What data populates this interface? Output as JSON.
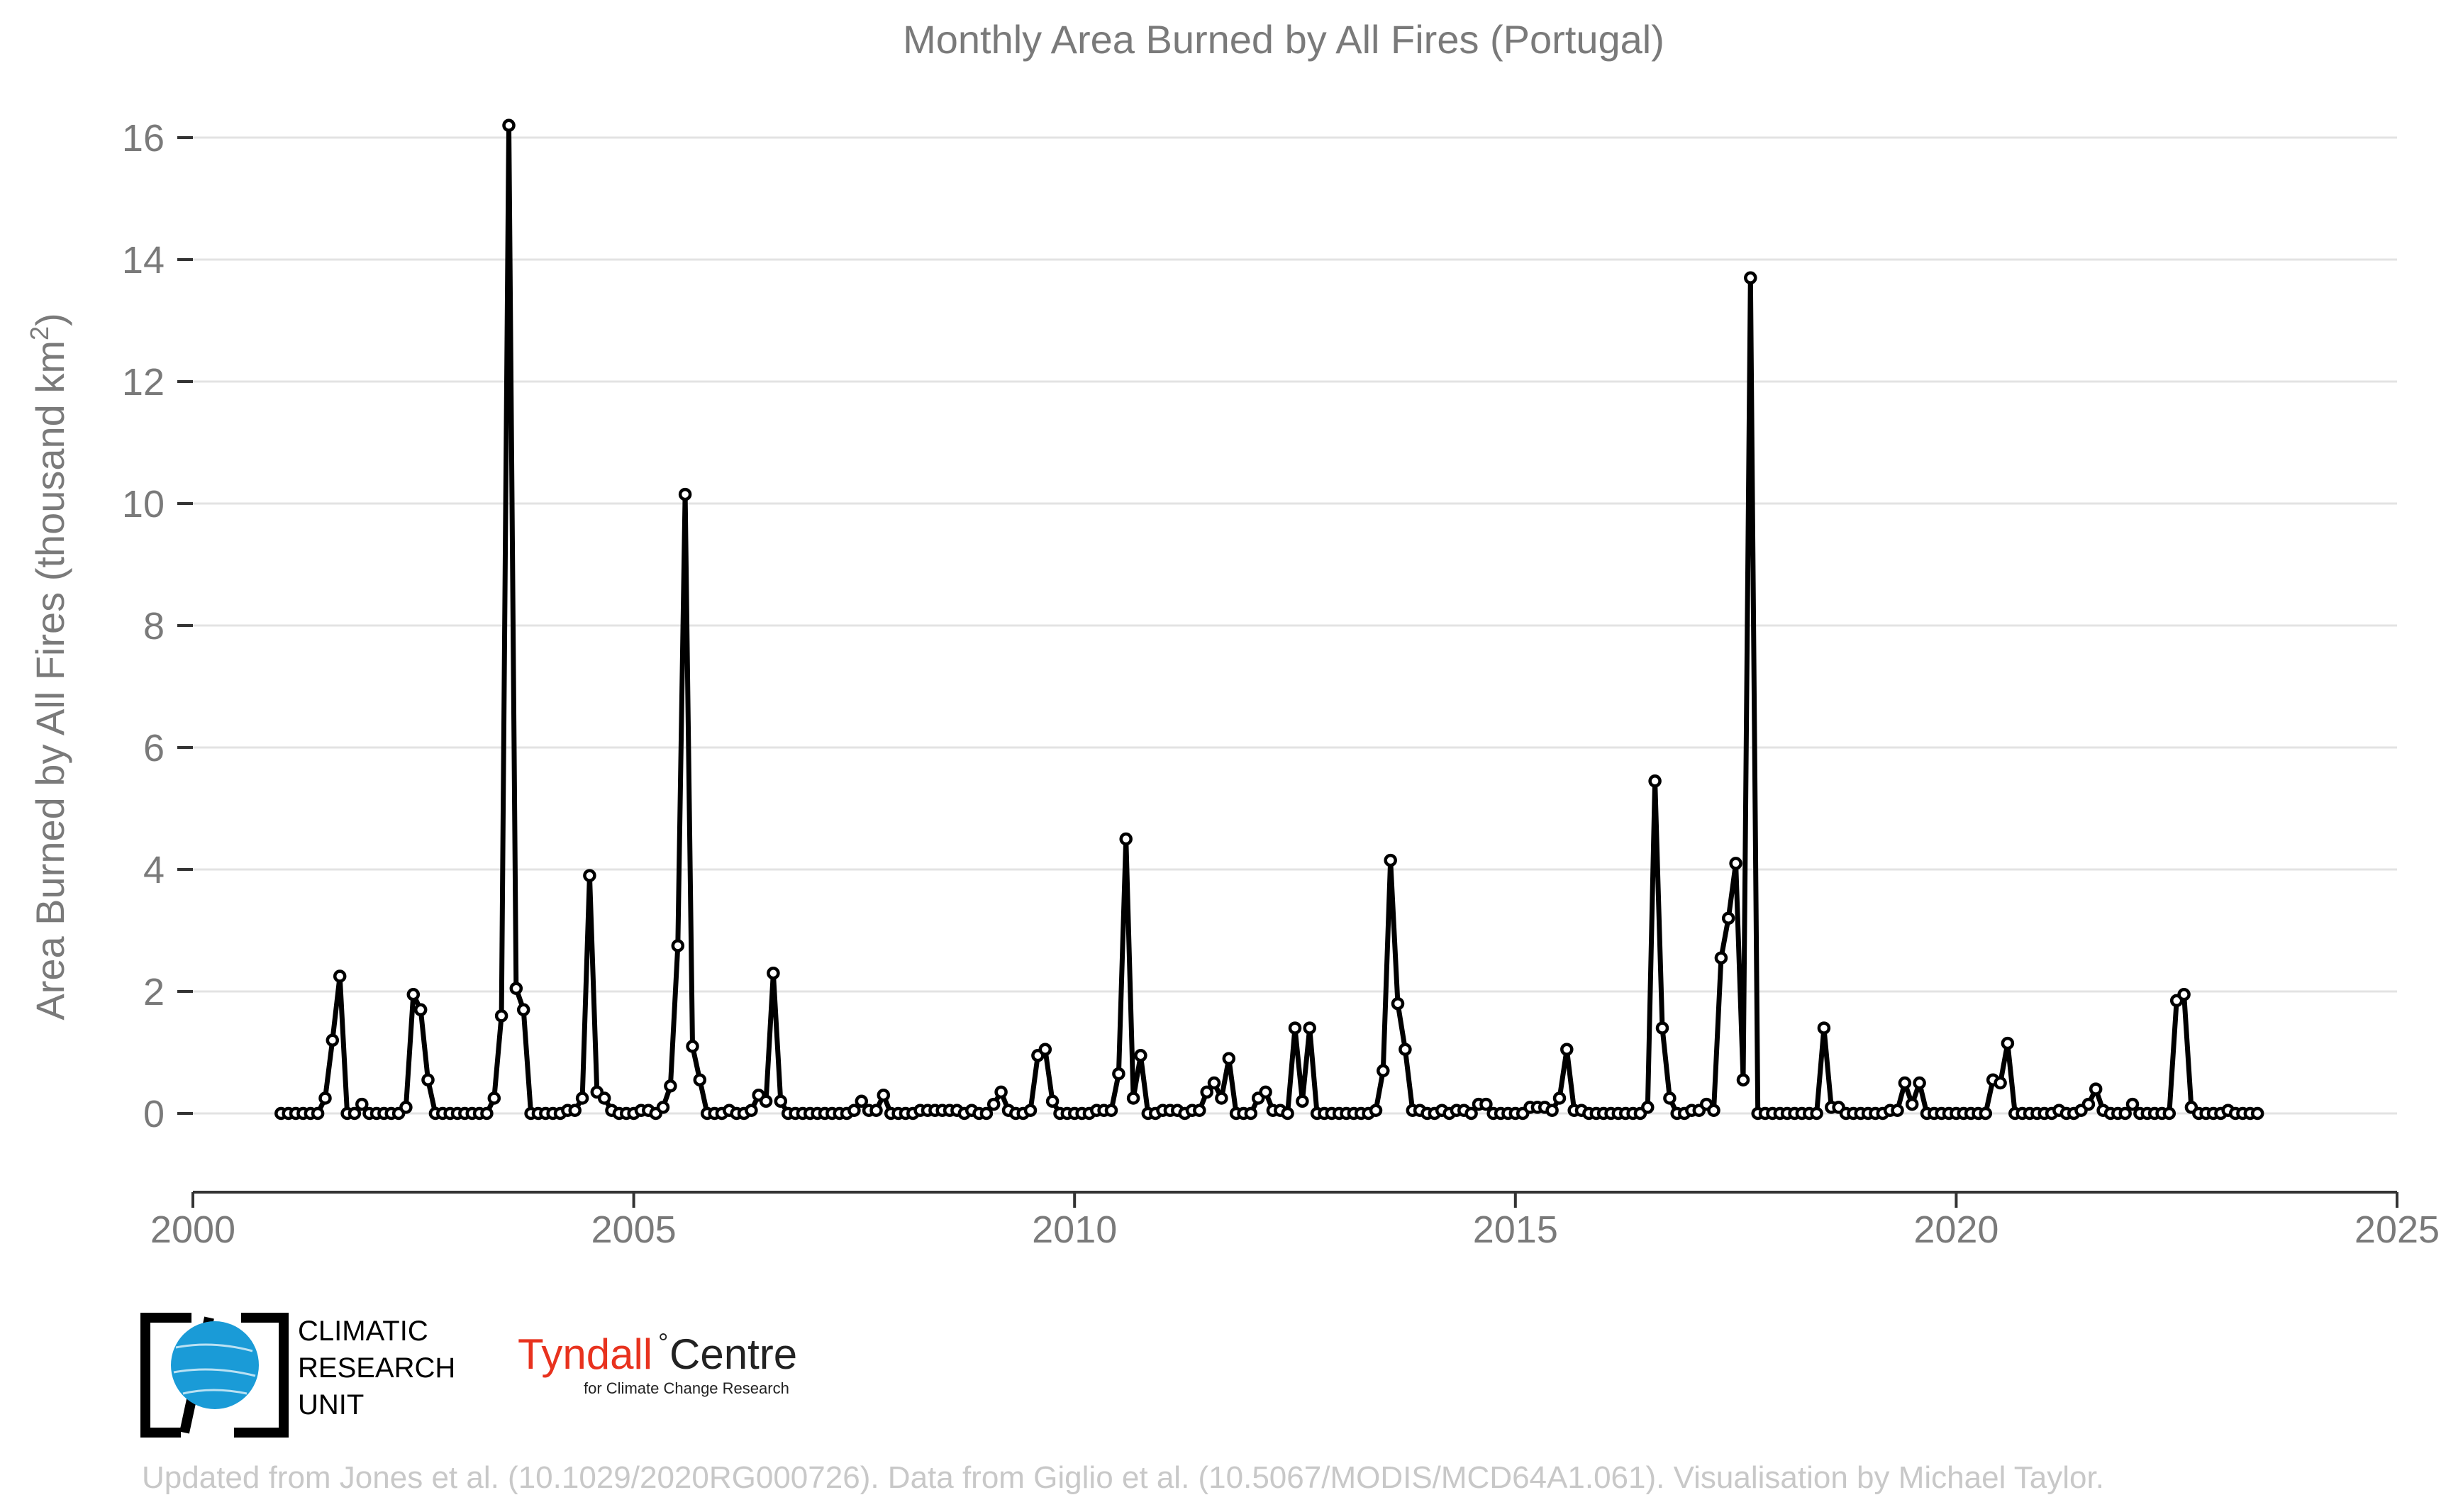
{
  "chart_data": {
    "type": "line",
    "title": "Monthly Area Burned by All Fires (Portugal)",
    "ylabel_main": "Area Burned by All Fires (thousand km",
    "ylabel_sup": "2",
    "ylabel_close": ")",
    "xlabel": "",
    "xlim": [
      2000,
      2025
    ],
    "ylim": [
      -1.3,
      16.5
    ],
    "xticks": [
      2000,
      2005,
      2010,
      2015,
      2020,
      2025
    ],
    "yticks": [
      0,
      2,
      4,
      6,
      8,
      10,
      12,
      14,
      16
    ],
    "grid": "horizontal",
    "x_start": "2001-01",
    "x_step": "1 month",
    "series": [
      {
        "color": "#000000",
        "values": [
          0,
          0,
          0,
          0,
          0,
          0,
          0.25,
          1.2,
          2.25,
          0,
          0,
          0.15,
          0,
          0,
          0,
          0,
          0,
          0.1,
          1.95,
          1.7,
          0.55,
          0,
          0,
          0,
          0,
          0,
          0,
          0,
          0,
          0.25,
          1.6,
          16.2,
          2.05,
          1.7,
          0,
          0,
          0,
          0,
          0,
          0.05,
          0.05,
          0.25,
          3.9,
          0.35,
          0.25,
          0.05,
          0,
          0,
          0,
          0.05,
          0.05,
          0,
          0.1,
          0.45,
          2.75,
          10.15,
          1.1,
          0.55,
          0,
          0,
          0,
          0.05,
          0,
          0,
          0.05,
          0.3,
          0.2,
          2.3,
          0.2,
          0,
          0,
          0,
          0,
          0,
          0,
          0,
          0,
          0,
          0.05,
          0.2,
          0.05,
          0.05,
          0.3,
          0,
          0,
          0,
          0,
          0.05,
          0.05,
          0.05,
          0.05,
          0.05,
          0.05,
          0,
          0.05,
          0,
          0,
          0.15,
          0.35,
          0.05,
          0,
          0,
          0.05,
          0.95,
          1.05,
          0.2,
          0,
          0,
          0,
          0,
          0,
          0.05,
          0.05,
          0.05,
          0.65,
          4.5,
          0.25,
          0.95,
          0,
          0,
          0.05,
          0.05,
          0.05,
          0,
          0.05,
          0.05,
          0.35,
          0.5,
          0.25,
          0.9,
          0,
          0,
          0,
          0.25,
          0.35,
          0.05,
          0.05,
          0,
          1.4,
          0.2,
          1.4,
          0,
          0,
          0,
          0,
          0,
          0,
          0,
          0,
          0.05,
          0.7,
          4.15,
          1.8,
          1.05,
          0.05,
          0.05,
          0,
          0,
          0.05,
          0,
          0.05,
          0.05,
          0,
          0.15,
          0.15,
          0,
          0,
          0,
          0,
          0,
          0.1,
          0.1,
          0.1,
          0.05,
          0.25,
          1.05,
          0.05,
          0.05,
          0,
          0,
          0,
          0,
          0,
          0,
          0,
          0,
          0.1,
          5.45,
          1.4,
          0.25,
          0,
          0,
          0.05,
          0.05,
          0.15,
          0.05,
          2.55,
          3.2,
          4.1,
          0.55,
          13.7,
          0,
          0,
          0,
          0,
          0,
          0,
          0,
          0,
          0,
          1.4,
          0.1,
          0.1,
          0,
          0,
          0,
          0,
          0,
          0,
          0.05,
          0.05,
          0.5,
          0.15,
          0.5,
          0,
          0,
          0,
          0,
          0,
          0,
          0,
          0,
          0,
          0.55,
          0.5,
          1.15,
          0,
          0,
          0,
          0,
          0,
          0,
          0.05,
          0,
          0,
          0.05,
          0.15,
          0.4,
          0.05,
          0,
          0,
          0,
          0.15,
          0,
          0,
          0,
          0,
          0,
          1.85,
          1.95,
          0.1,
          0,
          0,
          0,
          0,
          0.05,
          0,
          0,
          0,
          0
        ]
      }
    ]
  },
  "logos": {
    "cru_line1": "CLIMATIC",
    "cru_line2": "RESEARCH",
    "cru_line3": "UNIT",
    "tyndall_name": "Tyndall",
    "tyndall_degree": "°",
    "tyndall_centre": "Centre",
    "tyndall_sub": "for Climate Change Research"
  },
  "credit": "Updated from Jones et al. (10.1029/2020RG000726). Data from Giglio et al. (10.5067/MODIS/MCD64A1.061). Visualisation by Michael Taylor.",
  "colors": {
    "line": "#000000",
    "grid": "#e3e3e3",
    "text": "#7a7a7a",
    "credit": "#c8c8c8",
    "cru_blue": "#1a9bd7",
    "tyndall_red": "#e8321e"
  }
}
